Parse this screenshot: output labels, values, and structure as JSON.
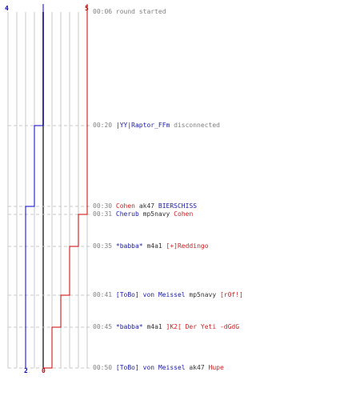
{
  "chart_data": {
    "type": "line",
    "title": "",
    "xlabel": "",
    "ylabel": "",
    "xlim": [
      0,
      5
    ],
    "series": [
      {
        "color": "#0000cc",
        "start": 4,
        "end": 2,
        "steps": [
          {
            "time": "00:20",
            "value": 3
          },
          {
            "time": "00:30",
            "value": 2
          }
        ]
      },
      {
        "color": "#cc0000",
        "start": 5,
        "end": 0,
        "steps": [
          {
            "time": "00:31",
            "value": 4
          },
          {
            "time": "00:35",
            "value": 3
          },
          {
            "time": "00:41",
            "value": 2
          },
          {
            "time": "00:45",
            "value": 1
          },
          {
            "time": "00:50",
            "value": 0
          }
        ]
      }
    ]
  },
  "counts": {
    "blue_start": "4",
    "red_start": "5",
    "blue_end": "2",
    "red_end": "0"
  },
  "events": [
    {
      "time": "00:06",
      "parts": [
        {
          "text": "round started",
          "style": "msg"
        }
      ]
    },
    {
      "time": "00:20",
      "parts": [
        {
          "text": "|YY|Raptor_FFm",
          "style": "blue"
        },
        {
          "text": " disconnected",
          "style": "msg"
        }
      ]
    },
    {
      "time": "00:30",
      "parts": [
        {
          "text": "Cohen",
          "style": "red"
        },
        {
          "text": " ak47 ",
          "style": "plain"
        },
        {
          "text": "BIERSCHISS",
          "style": "blue"
        }
      ]
    },
    {
      "time": "00:31",
      "parts": [
        {
          "text": "Cherub",
          "style": "blue"
        },
        {
          "text": " mp5navy ",
          "style": "plain"
        },
        {
          "text": "Cohen",
          "style": "red"
        }
      ]
    },
    {
      "time": "00:35",
      "parts": [
        {
          "text": "*babba*",
          "style": "blue"
        },
        {
          "text": " m4a1 ",
          "style": "plain"
        },
        {
          "text": "[+]Reddingo",
          "style": "red"
        }
      ]
    },
    {
      "time": "00:41",
      "parts": [
        {
          "text": "[ToBo] von Meissel",
          "style": "blue"
        },
        {
          "text": " mp5navy ",
          "style": "plain"
        },
        {
          "text": "[r0f!]",
          "style": "red"
        }
      ]
    },
    {
      "time": "00:45",
      "parts": [
        {
          "text": "*babba*",
          "style": "blue"
        },
        {
          "text": " m4a1 ",
          "style": "plain"
        },
        {
          "text": "]K2[ Der Yeti -dGdG",
          "style": "red"
        }
      ]
    },
    {
      "time": "00:50",
      "parts": [
        {
          "text": "[ToBo] von Meissel",
          "style": "blue"
        },
        {
          "text": " ak47 ",
          "style": "plain"
        },
        {
          "text": "Hupe",
          "style": "red"
        }
      ]
    }
  ]
}
